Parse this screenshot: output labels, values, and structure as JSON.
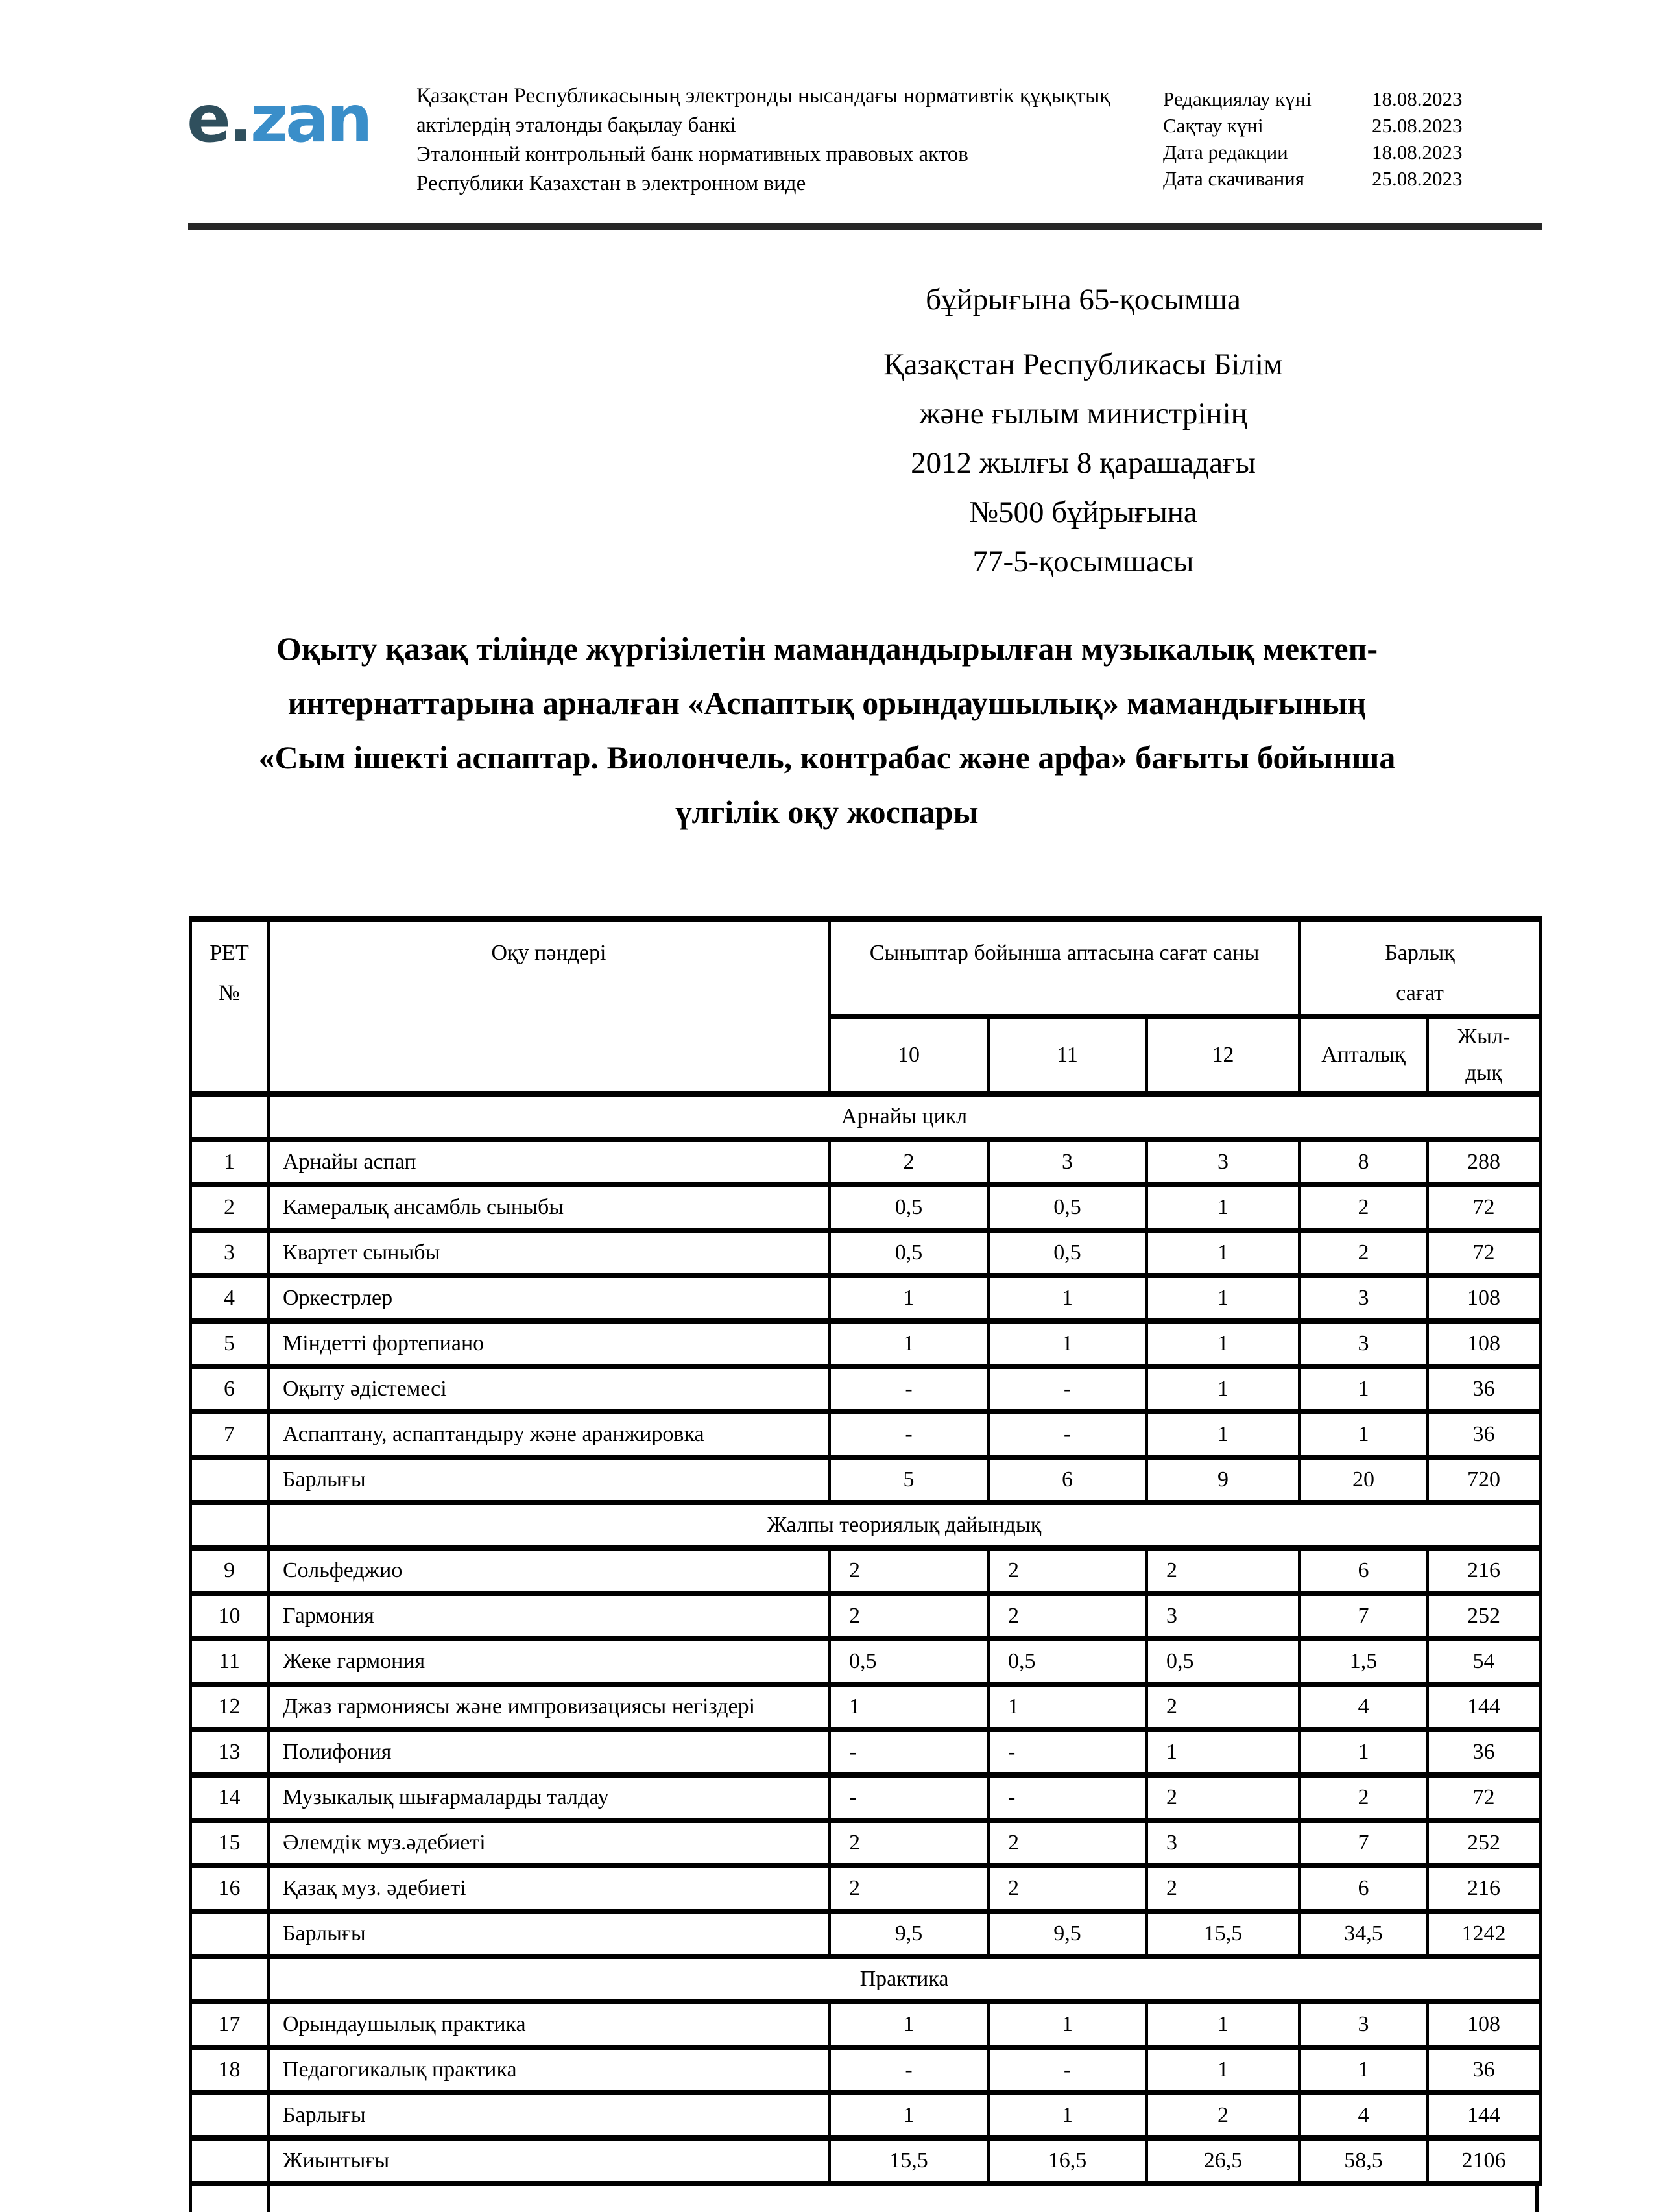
{
  "header": {
    "logo_e": "e.",
    "logo_zan": "zan",
    "bank_lines": [
      "Қазақстан Республикасының электронды нысандағы нормативтік құқықтық",
      "актілердің эталонды бақылау банкі",
      "Эталонный контрольный банк нормативных правовых актов",
      "Республики Казахстан в электронном виде"
    ],
    "dates": [
      {
        "label": "Редакциялау күні",
        "value": "18.08.2023"
      },
      {
        "label": "Сақтау күні",
        "value": "25.08.2023"
      },
      {
        "label": "Дата редакции",
        "value": "18.08.2023"
      },
      {
        "label": "Дата скачивания",
        "value": "25.08.2023"
      }
    ],
    "accent_colors": {
      "logo_e": "#2f4f5d",
      "logo_zan": "#3a8ec9",
      "rule": "#272727"
    }
  },
  "appendix": {
    "first_line": "бұйрығына 65-қосымша",
    "lines": [
      "Қазақстан Республикасы Білім",
      "және ғылым министрінің",
      "2012 жылғы 8 қарашадағы",
      "№500 бұйрығына",
      "77-5-қосымшасы"
    ]
  },
  "title": {
    "lines": [
      "Оқыту қазақ тілінде жүргізілетін мамандандырылған музыкалық мектеп-",
      "интернаттарына арналған «Аспаптық орындаушылық» мамандығының",
      "«Сым ішекті аспаптар. Виолончель, контрабас және арфа» бағыты бойынша",
      "үлгілік оқу жоспары"
    ]
  },
  "table": {
    "header": {
      "ret_line1": "РЕТ",
      "ret_line2": "№",
      "subject": "Оқу пәндері",
      "hours_group": "Сыныптар бойынша аптасына сағат саны",
      "total_line1": "Барлық",
      "total_line2": "сағат",
      "grade10": "10",
      "grade11": "11",
      "grade12": "12",
      "weekly": "Апталық",
      "yearly_line1": "Жыл-",
      "yearly_line2": "дық"
    },
    "rows": [
      {
        "type": "section",
        "label": "Арнайы цикл"
      },
      {
        "type": "data",
        "num": "1",
        "subject": "Арнайы аспап",
        "h10": "2",
        "h11": "3",
        "h12": "3",
        "weekly": "8",
        "yearly": "288"
      },
      {
        "type": "data",
        "num": "2",
        "subject": "Камералық ансамбль сыныбы",
        "h10": "0,5",
        "h11": "0,5",
        "h12": "1",
        "weekly": "2",
        "yearly": "72"
      },
      {
        "type": "data",
        "num": "3",
        "subject": "Квартет сыныбы",
        "h10": "0,5",
        "h11": "0,5",
        "h12": "1",
        "weekly": "2",
        "yearly": "72"
      },
      {
        "type": "data",
        "num": "4",
        "subject": "Оркестрлер",
        "h10": "1",
        "h11": "1",
        "h12": "1",
        "weekly": "3",
        "yearly": "108"
      },
      {
        "type": "data",
        "num": "5",
        "subject": "Міндетті фортепиано",
        "h10": "1",
        "h11": "1",
        "h12": "1",
        "weekly": "3",
        "yearly": "108"
      },
      {
        "type": "data",
        "num": "6",
        "subject": "Оқыту әдістемесі",
        "h10": "-",
        "h11": "-",
        "h12": "1",
        "weekly": "1",
        "yearly": "36"
      },
      {
        "type": "data",
        "num": "7",
        "subject": "Аспаптану, аспаптандыру және аранжировка",
        "h10": "-",
        "h11": "-",
        "h12": "1",
        "weekly": "1",
        "yearly": "36"
      },
      {
        "type": "total",
        "label": "Барлығы",
        "h10": "5",
        "h11": "6",
        "h12": "9",
        "weekly": "20",
        "yearly": "720"
      },
      {
        "type": "section",
        "label": "Жалпы теориялық дайындық"
      },
      {
        "type": "data",
        "num": "9",
        "subject": "Сольфеджио",
        "h10": "2",
        "h11": "2",
        "h12": "2",
        "weekly": "6",
        "yearly": "216",
        "align": "left"
      },
      {
        "type": "data",
        "num": "10",
        "subject": "Гармония",
        "h10": "2",
        "h11": "2",
        "h12": "3",
        "weekly": "7",
        "yearly": "252",
        "align": "left"
      },
      {
        "type": "data",
        "num": "11",
        "subject": "Жеке гармония",
        "h10": "0,5",
        "h11": "0,5",
        "h12": "0,5",
        "weekly": "1,5",
        "yearly": "54",
        "align": "left"
      },
      {
        "type": "data",
        "num": "12",
        "subject": "Джаз гармониясы және импровизациясы негіздері",
        "h10": "1",
        "h11": "1",
        "h12": "2",
        "weekly": "4",
        "yearly": "144",
        "align": "left"
      },
      {
        "type": "data",
        "num": "13",
        "subject": "Полифония",
        "h10": "-",
        "h11": "-",
        "h12": "1",
        "weekly": "1",
        "yearly": "36",
        "align": "left"
      },
      {
        "type": "data",
        "num": "14",
        "subject": "Музыкалық шығармаларды талдау",
        "h10": "-",
        "h11": "-",
        "h12": "2",
        "weekly": "2",
        "yearly": "72",
        "align": "left"
      },
      {
        "type": "data",
        "num": "15",
        "subject": "Әлемдік муз.әдебиеті",
        "h10": "2",
        "h11": "2",
        "h12": "3",
        "weekly": "7",
        "yearly": "252",
        "align": "left"
      },
      {
        "type": "data",
        "num": "16",
        "subject": "Қазақ муз. әдебиеті",
        "h10": "2",
        "h11": "2",
        "h12": "2",
        "weekly": "6",
        "yearly": "216",
        "align": "left"
      },
      {
        "type": "total",
        "label": "Барлығы",
        "h10": "9,5",
        "h11": "9,5",
        "h12": "15,5",
        "weekly": "34,5",
        "yearly": "1242"
      },
      {
        "type": "section",
        "label": "Практика"
      },
      {
        "type": "data",
        "num": "17",
        "subject": "Орындаушылық практика",
        "h10": "1",
        "h11": "1",
        "h12": "1",
        "weekly": "3",
        "yearly": "108"
      },
      {
        "type": "data",
        "num": "18",
        "subject": "Педагогикалық практика",
        "h10": "-",
        "h11": "-",
        "h12": "1",
        "weekly": "1",
        "yearly": "36"
      },
      {
        "type": "total",
        "label": "Барлығы",
        "h10": "1",
        "h11": "1",
        "h12": "2",
        "weekly": "4",
        "yearly": "144"
      },
      {
        "type": "total",
        "label": "Жиынтығы",
        "h10": "15,5",
        "h11": "16,5",
        "h12": "26,5",
        "weekly": "58,5",
        "yearly": "2106"
      }
    ]
  }
}
